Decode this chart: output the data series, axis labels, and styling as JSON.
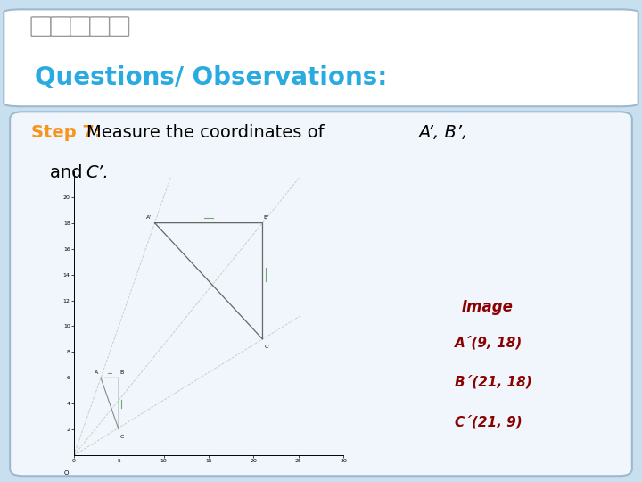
{
  "title_box_text": "Questions/ Observations:",
  "title_color": "#29ABE2",
  "step_label": "Step 7:",
  "step_color": "#F7941D",
  "bg_outer": "#c8dff0",
  "bg_title": "#ffffff",
  "bg_content": "#f0f6fc",
  "image_label": "Image",
  "image_coords": [
    "A´(9, 18)",
    "B´(21, 18)",
    "C´(21, 9)"
  ],
  "label_color": "#8B0000",
  "graph_xlim": [
    0,
    30
  ],
  "graph_ylim": [
    0,
    22
  ],
  "graph_xticks": [
    0,
    5,
    10,
    15,
    20,
    25,
    30
  ],
  "graph_yticks": [
    2,
    4,
    6,
    8,
    10,
    12,
    14,
    16,
    18,
    20
  ],
  "origin_label": "O",
  "small_triangle": {
    "A": [
      3,
      6
    ],
    "B": [
      5,
      6
    ],
    "C": [
      5,
      2
    ]
  },
  "large_triangle": {
    "A": [
      9,
      18
    ],
    "B": [
      21,
      18
    ],
    "C": [
      21,
      9
    ]
  }
}
